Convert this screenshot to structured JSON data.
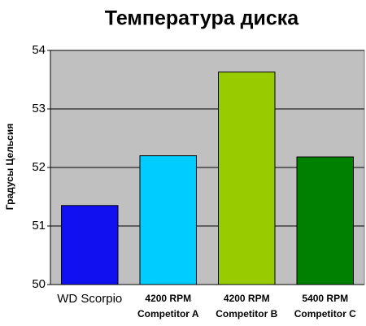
{
  "chart_data": {
    "type": "bar",
    "title": "Температура диска",
    "y_label": "Градусы Цельсия",
    "categories": [
      "WD Scorpio",
      "4200 RPM\nCompetitor A",
      "4200 RPM\nCompetitor B",
      "5400 RPM\nCompetitor C"
    ],
    "values": [
      51.35,
      52.2,
      53.63,
      52.18
    ],
    "colors": [
      "#1010f0",
      "#00ccff",
      "#99cc00",
      "#008000"
    ],
    "ylim": [
      50,
      54
    ],
    "yticks": [
      50,
      51,
      52,
      53,
      54
    ],
    "grid": true
  }
}
